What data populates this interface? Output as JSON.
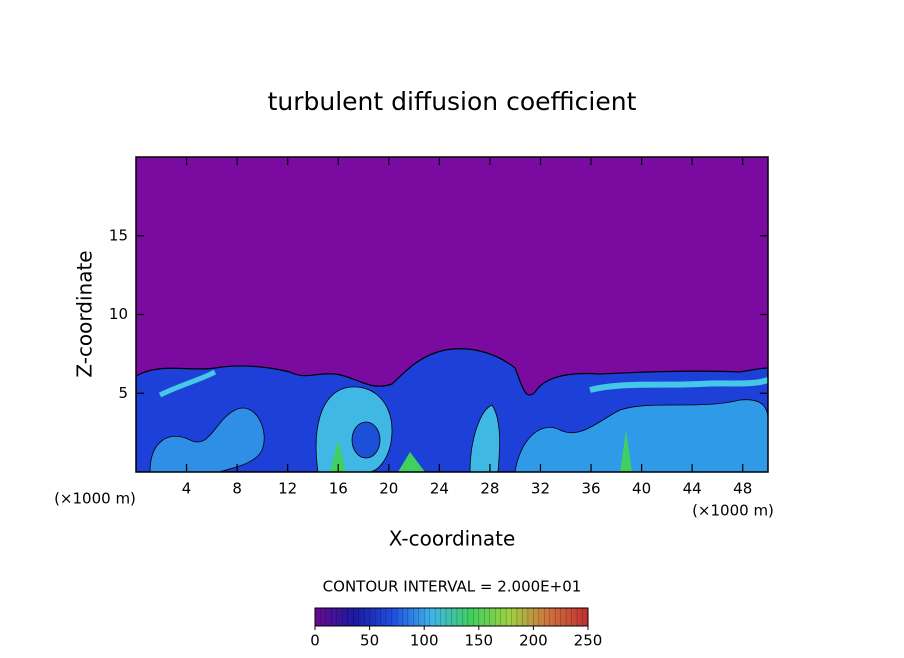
{
  "chart_data": {
    "type": "contour",
    "title": "turbulent diffusion coefficient",
    "x_label": "X-coordinate",
    "y_label": "Z-coordinate",
    "x_unit": "(×1000 m)",
    "y_unit": "(×1000 m)",
    "contour_interval": "CONTOUR INTERVAL = 2.000E+01",
    "xlim": [
      0,
      50
    ],
    "xticks": [
      4,
      8,
      12,
      16,
      20,
      24,
      28,
      32,
      36,
      40,
      44,
      48
    ],
    "ylim": [
      0,
      20
    ],
    "yticks": [
      5,
      10,
      15
    ],
    "colorbar": {
      "clim": [
        0,
        250
      ],
      "ticks": [
        0,
        50,
        100,
        150,
        200,
        250
      ],
      "colors": [
        "#6a0a8e",
        "#1a1aa0",
        "#1f4fe0",
        "#3fb5e8",
        "#40d060",
        "#a0d040",
        "#d07040",
        "#c03030"
      ]
    }
  }
}
